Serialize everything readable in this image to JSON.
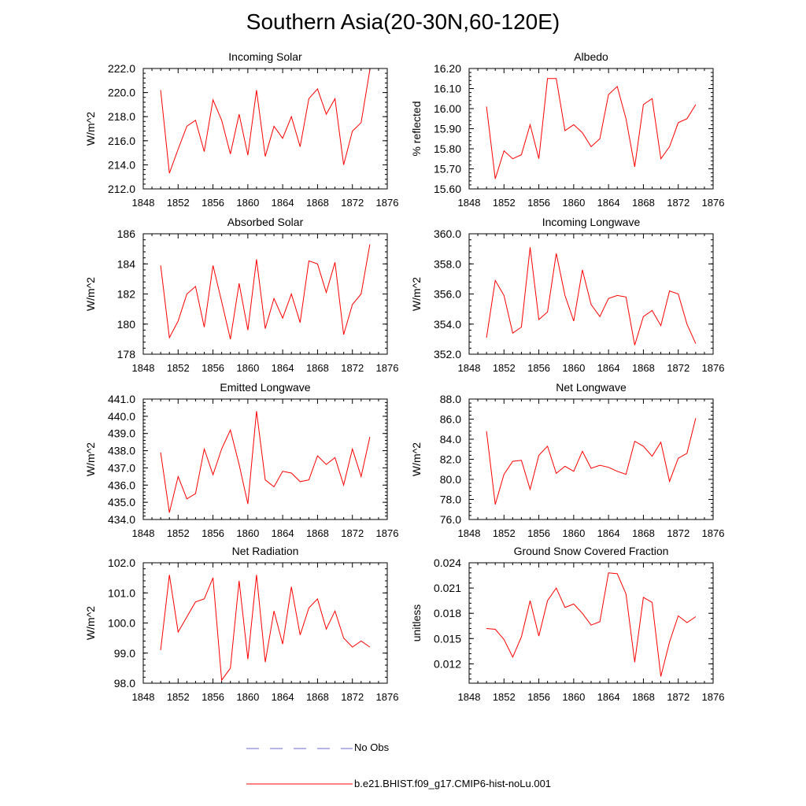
{
  "title": "Southern Asia(20-30N,60-120E)",
  "legend": [
    {
      "label": "No Obs",
      "color": "#6a6ad0",
      "dash": true
    },
    {
      "label": "b.e21.BHIST.f09_g17.CMIP6-hist-noLu.001",
      "color": "#ff0000",
      "dash": false
    }
  ],
  "chart_data": [
    {
      "type": "line",
      "title": "Incoming Solar",
      "ylabel": "W/m^2",
      "xlim": [
        1848,
        1876
      ],
      "xticks": [
        1848,
        1852,
        1856,
        1860,
        1864,
        1868,
        1872,
        1876
      ],
      "ylim": [
        212,
        222
      ],
      "yticks": [
        212,
        214,
        216,
        218,
        220,
        222
      ],
      "ydec": 1,
      "series": [
        {
          "color": "#ff0000",
          "x": [
            1850,
            1851,
            1852,
            1853,
            1854,
            1855,
            1856,
            1857,
            1858,
            1859,
            1860,
            1861,
            1862,
            1863,
            1864,
            1865,
            1866,
            1867,
            1868,
            1869,
            1870,
            1871,
            1872,
            1873,
            1874
          ],
          "y": [
            220.2,
            213.3,
            215.3,
            217.2,
            217.7,
            215.1,
            219.4,
            217.7,
            214.9,
            218.2,
            214.8,
            220.2,
            214.7,
            217.2,
            216.2,
            218.0,
            215.5,
            219.5,
            220.3,
            218.2,
            219.5,
            214.0,
            216.8,
            217.5,
            221.9
          ]
        }
      ]
    },
    {
      "type": "line",
      "title": "Albedo",
      "ylabel": "% reflected",
      "xlim": [
        1848,
        1876
      ],
      "xticks": [
        1848,
        1852,
        1856,
        1860,
        1864,
        1868,
        1872,
        1876
      ],
      "ylim": [
        15.6,
        16.2
      ],
      "yticks": [
        15.6,
        15.7,
        15.8,
        15.9,
        16.0,
        16.1,
        16.2
      ],
      "ydec": 2,
      "series": [
        {
          "color": "#ff0000",
          "x": [
            1850,
            1851,
            1852,
            1853,
            1854,
            1855,
            1856,
            1857,
            1858,
            1859,
            1860,
            1861,
            1862,
            1863,
            1864,
            1865,
            1866,
            1867,
            1868,
            1869,
            1870,
            1871,
            1872,
            1873,
            1874
          ],
          "y": [
            16.01,
            15.65,
            15.79,
            15.75,
            15.77,
            15.92,
            15.75,
            16.15,
            16.15,
            15.89,
            15.92,
            15.88,
            15.81,
            15.85,
            16.07,
            16.11,
            15.95,
            15.71,
            16.02,
            16.05,
            15.75,
            15.81,
            15.93,
            15.95,
            16.02
          ]
        }
      ]
    },
    {
      "type": "line",
      "title": "Absorbed Solar",
      "ylabel": "W/m^2",
      "xlim": [
        1848,
        1876
      ],
      "xticks": [
        1848,
        1852,
        1856,
        1860,
        1864,
        1868,
        1872,
        1876
      ],
      "ylim": [
        178,
        186
      ],
      "yticks": [
        178,
        180,
        182,
        184,
        186
      ],
      "ydec": 0,
      "series": [
        {
          "color": "#ff0000",
          "x": [
            1850,
            1851,
            1852,
            1853,
            1854,
            1855,
            1856,
            1857,
            1858,
            1859,
            1860,
            1861,
            1862,
            1863,
            1864,
            1865,
            1866,
            1867,
            1868,
            1869,
            1870,
            1871,
            1872,
            1873,
            1874
          ],
          "y": [
            183.9,
            179.1,
            180.2,
            182.0,
            182.5,
            179.8,
            183.9,
            181.5,
            179.0,
            182.7,
            179.6,
            184.3,
            179.7,
            181.7,
            180.4,
            182.0,
            180.1,
            184.2,
            184.0,
            182.1,
            184.1,
            179.3,
            181.3,
            182.0,
            185.3
          ]
        }
      ]
    },
    {
      "type": "line",
      "title": "Incoming Longwave",
      "ylabel": "W/m^2",
      "xlim": [
        1848,
        1876
      ],
      "xticks": [
        1848,
        1852,
        1856,
        1860,
        1864,
        1868,
        1872,
        1876
      ],
      "ylim": [
        352,
        360
      ],
      "yticks": [
        352,
        354,
        356,
        358,
        360
      ],
      "ydec": 1,
      "series": [
        {
          "color": "#ff0000",
          "x": [
            1850,
            1851,
            1852,
            1853,
            1854,
            1855,
            1856,
            1857,
            1858,
            1859,
            1860,
            1861,
            1862,
            1863,
            1864,
            1865,
            1866,
            1867,
            1868,
            1869,
            1870,
            1871,
            1872,
            1873,
            1874
          ],
          "y": [
            353.1,
            356.9,
            355.9,
            353.4,
            353.8,
            359.1,
            354.3,
            354.8,
            358.7,
            355.9,
            354.2,
            357.6,
            355.3,
            354.5,
            355.7,
            355.9,
            355.8,
            352.6,
            354.5,
            354.9,
            353.9,
            356.2,
            356.0,
            354.0,
            352.7
          ]
        }
      ]
    },
    {
      "type": "line",
      "title": "Emitted Longwave",
      "ylabel": "W/m^2",
      "xlim": [
        1848,
        1876
      ],
      "xticks": [
        1848,
        1852,
        1856,
        1860,
        1864,
        1868,
        1872,
        1876
      ],
      "ylim": [
        434,
        441
      ],
      "yticks": [
        434,
        435,
        436,
        437,
        438,
        439,
        440,
        441
      ],
      "ydec": 1,
      "series": [
        {
          "color": "#ff0000",
          "x": [
            1850,
            1851,
            1852,
            1853,
            1854,
            1855,
            1856,
            1857,
            1858,
            1859,
            1860,
            1861,
            1862,
            1863,
            1864,
            1865,
            1866,
            1867,
            1868,
            1869,
            1870,
            1871,
            1872,
            1873,
            1874
          ],
          "y": [
            437.9,
            434.4,
            436.5,
            435.2,
            435.5,
            438.1,
            436.6,
            438.1,
            439.2,
            437.2,
            434.9,
            440.3,
            436.3,
            435.9,
            436.8,
            436.7,
            436.2,
            436.3,
            437.7,
            437.2,
            437.6,
            436.0,
            438.1,
            436.5,
            438.8
          ]
        }
      ]
    },
    {
      "type": "line",
      "title": "Net Longwave",
      "ylabel": "W/m^2",
      "xlim": [
        1848,
        1876
      ],
      "xticks": [
        1848,
        1852,
        1856,
        1860,
        1864,
        1868,
        1872,
        1876
      ],
      "ylim": [
        76,
        88
      ],
      "yticks": [
        76,
        78,
        80,
        82,
        84,
        86,
        88
      ],
      "ydec": 1,
      "series": [
        {
          "color": "#ff0000",
          "x": [
            1850,
            1851,
            1852,
            1853,
            1854,
            1855,
            1856,
            1857,
            1858,
            1859,
            1860,
            1861,
            1862,
            1863,
            1864,
            1865,
            1866,
            1867,
            1868,
            1869,
            1870,
            1871,
            1872,
            1873,
            1874
          ],
          "y": [
            84.8,
            77.5,
            80.5,
            81.8,
            81.9,
            79.0,
            82.4,
            83.3,
            80.6,
            81.3,
            80.8,
            82.8,
            81.1,
            81.4,
            81.2,
            80.8,
            80.5,
            83.8,
            83.3,
            82.3,
            83.7,
            79.8,
            82.1,
            82.6,
            86.1
          ]
        }
      ]
    },
    {
      "type": "line",
      "title": "Net Radiation",
      "ylabel": "W/m^2",
      "xlim": [
        1848,
        1876
      ],
      "xticks": [
        1848,
        1852,
        1856,
        1860,
        1864,
        1868,
        1872,
        1876
      ],
      "ylim": [
        98,
        102
      ],
      "yticks": [
        98,
        99,
        100,
        101,
        102
      ],
      "ydec": 1,
      "series": [
        {
          "color": "#ff0000",
          "x": [
            1850,
            1851,
            1852,
            1853,
            1854,
            1855,
            1856,
            1857,
            1858,
            1859,
            1860,
            1861,
            1862,
            1863,
            1864,
            1865,
            1866,
            1867,
            1868,
            1869,
            1870,
            1871,
            1872,
            1873,
            1874
          ],
          "y": [
            99.1,
            101.6,
            99.7,
            100.2,
            100.7,
            100.8,
            101.5,
            98.1,
            98.5,
            101.4,
            98.8,
            101.6,
            98.7,
            100.4,
            99.3,
            101.2,
            99.6,
            100.5,
            100.8,
            99.8,
            100.4,
            99.5,
            99.2,
            99.4,
            99.2
          ]
        }
      ]
    },
    {
      "type": "line",
      "title": "Ground Snow Covered Fraction",
      "ylabel": "unitless",
      "xlim": [
        1848,
        1876
      ],
      "xticks": [
        1848,
        1852,
        1856,
        1860,
        1864,
        1868,
        1872,
        1876
      ],
      "ylim": [
        0.0097,
        0.024
      ],
      "yticks": [
        0.012,
        0.015,
        0.018,
        0.021,
        0.024
      ],
      "ydec": 3,
      "series": [
        {
          "color": "#ff0000",
          "x": [
            1850,
            1851,
            1852,
            1853,
            1854,
            1855,
            1856,
            1857,
            1858,
            1859,
            1860,
            1861,
            1862,
            1863,
            1864,
            1865,
            1866,
            1867,
            1868,
            1869,
            1870,
            1871,
            1872,
            1873,
            1874
          ],
          "y": [
            0.0162,
            0.0161,
            0.0149,
            0.0128,
            0.0152,
            0.0195,
            0.0153,
            0.0195,
            0.021,
            0.0187,
            0.0191,
            0.018,
            0.0166,
            0.017,
            0.0228,
            0.0227,
            0.0203,
            0.0122,
            0.0199,
            0.0193,
            0.0105,
            0.0146,
            0.0177,
            0.0169,
            0.0176
          ]
        }
      ]
    }
  ]
}
